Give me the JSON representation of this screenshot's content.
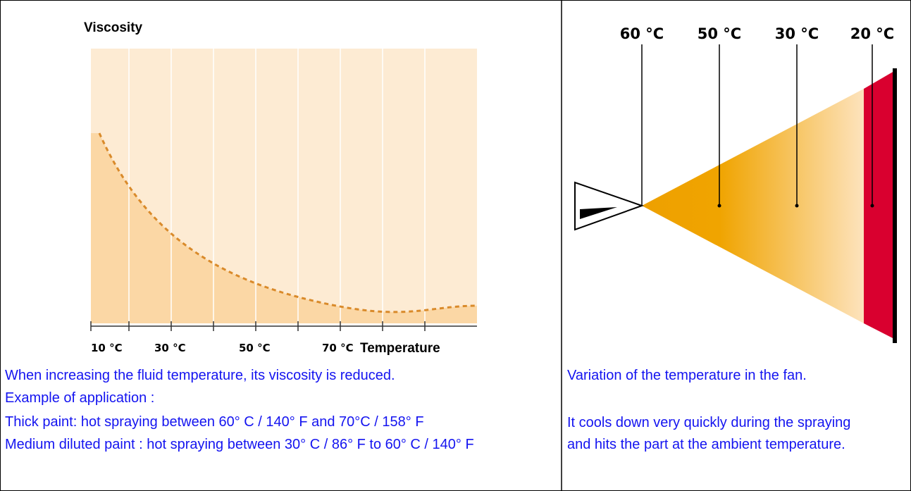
{
  "left": {
    "chart": {
      "y_axis_label": "Viscosity",
      "x_axis_label": "Temperature",
      "x_ticks": [
        "10 °C",
        "30 °C",
        "50 °C",
        "70 °C"
      ]
    },
    "paragraphs": [
      "When increasing the fluid temperature, its viscosity is reduced.",
      "Example of application :",
      "Thick paint: hot spraying between 60° C / 140° F and 70°C / 158° F",
      "Medium diluted paint : hot spraying between 30° C / 86° F to 60° C / 140° F"
    ]
  },
  "right": {
    "temperature_labels": [
      "60 °C",
      "50 °C",
      "30 °C",
      "20 °C"
    ],
    "paragraphs": [
      "Variation of the temperature in the fan.",
      "It cools down very quickly during the spraying and hits the part at the ambient temperature."
    ]
  }
}
